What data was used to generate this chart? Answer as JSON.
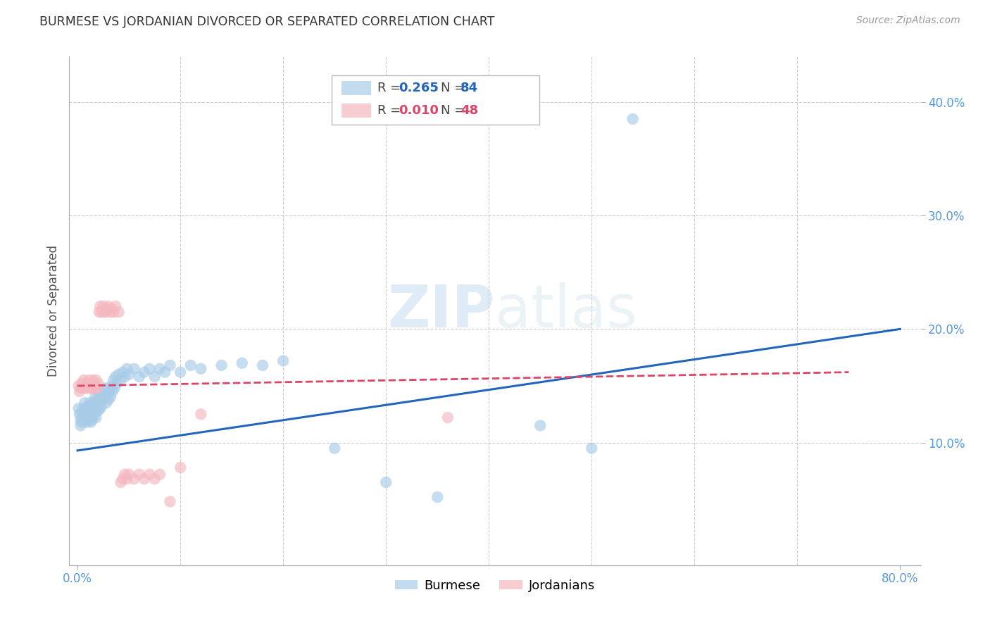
{
  "title": "BURMESE VS JORDANIAN DIVORCED OR SEPARATED CORRELATION CHART",
  "source": "Source: ZipAtlas.com",
  "tick_color": "#5599dd",
  "ylabel": "Divorced or Separated",
  "watermark": "ZIPatlas",
  "legend_r1": "0.265",
  "legend_n1": "84",
  "legend_r2": "0.010",
  "legend_n2": "48",
  "burmese_color": "#a8cce8",
  "jordanian_color": "#f4b8c0",
  "line_blue": "#2266bb",
  "line_pink": "#dd4466",
  "xlim": [
    -0.008,
    0.82
  ],
  "ylim": [
    -0.008,
    0.44
  ],
  "xtick_positions": [
    0.0,
    0.8
  ],
  "xtick_labels": [
    "0.0%",
    "80.0%"
  ],
  "ytick_positions": [
    0.1,
    0.2,
    0.3,
    0.4
  ],
  "ytick_labels": [
    "10.0%",
    "20.0%",
    "30.0%",
    "40.0%"
  ],
  "grid_yticks": [
    0.1,
    0.2,
    0.3,
    0.4
  ],
  "grid_xticks": [
    0.1,
    0.2,
    0.3,
    0.4,
    0.5,
    0.6,
    0.7
  ],
  "burmese_x": [
    0.001,
    0.002,
    0.003,
    0.003,
    0.004,
    0.004,
    0.005,
    0.005,
    0.006,
    0.006,
    0.007,
    0.007,
    0.008,
    0.008,
    0.009,
    0.009,
    0.01,
    0.01,
    0.011,
    0.011,
    0.012,
    0.012,
    0.013,
    0.013,
    0.014,
    0.014,
    0.015,
    0.015,
    0.016,
    0.016,
    0.017,
    0.017,
    0.018,
    0.018,
    0.019,
    0.02,
    0.02,
    0.021,
    0.022,
    0.022,
    0.023,
    0.023,
    0.024,
    0.025,
    0.026,
    0.027,
    0.028,
    0.029,
    0.03,
    0.031,
    0.032,
    0.033,
    0.034,
    0.035,
    0.036,
    0.037,
    0.038,
    0.04,
    0.042,
    0.044,
    0.046,
    0.048,
    0.05,
    0.055,
    0.06,
    0.065,
    0.07,
    0.075,
    0.08,
    0.085,
    0.09,
    0.1,
    0.11,
    0.12,
    0.14,
    0.16,
    0.18,
    0.2,
    0.25,
    0.3,
    0.35,
    0.45,
    0.5,
    0.54
  ],
  "burmese_y": [
    0.13,
    0.125,
    0.12,
    0.115,
    0.125,
    0.118,
    0.13,
    0.122,
    0.128,
    0.12,
    0.135,
    0.125,
    0.13,
    0.122,
    0.128,
    0.118,
    0.132,
    0.124,
    0.13,
    0.12,
    0.135,
    0.125,
    0.13,
    0.118,
    0.128,
    0.12,
    0.132,
    0.122,
    0.135,
    0.125,
    0.14,
    0.128,
    0.135,
    0.122,
    0.13,
    0.14,
    0.128,
    0.145,
    0.138,
    0.13,
    0.142,
    0.132,
    0.138,
    0.145,
    0.14,
    0.148,
    0.135,
    0.142,
    0.138,
    0.145,
    0.14,
    0.15,
    0.145,
    0.155,
    0.148,
    0.158,
    0.152,
    0.16,
    0.155,
    0.162,
    0.158,
    0.165,
    0.16,
    0.165,
    0.158,
    0.162,
    0.165,
    0.158,
    0.165,
    0.162,
    0.168,
    0.162,
    0.168,
    0.165,
    0.168,
    0.17,
    0.168,
    0.172,
    0.095,
    0.065,
    0.052,
    0.115,
    0.095,
    0.385
  ],
  "jordanian_x": [
    0.001,
    0.002,
    0.003,
    0.004,
    0.005,
    0.006,
    0.007,
    0.008,
    0.009,
    0.01,
    0.011,
    0.012,
    0.013,
    0.014,
    0.015,
    0.016,
    0.017,
    0.018,
    0.019,
    0.02,
    0.021,
    0.022,
    0.023,
    0.025,
    0.026,
    0.027,
    0.028,
    0.03,
    0.032,
    0.033,
    0.035,
    0.037,
    0.04,
    0.042,
    0.044,
    0.046,
    0.048,
    0.05,
    0.055,
    0.06,
    0.065,
    0.07,
    0.075,
    0.08,
    0.09,
    0.1,
    0.12,
    0.36
  ],
  "jordanian_y": [
    0.15,
    0.145,
    0.148,
    0.152,
    0.148,
    0.155,
    0.15,
    0.148,
    0.152,
    0.148,
    0.155,
    0.148,
    0.152,
    0.148,
    0.155,
    0.148,
    0.152,
    0.155,
    0.148,
    0.152,
    0.215,
    0.22,
    0.215,
    0.22,
    0.215,
    0.218,
    0.215,
    0.22,
    0.215,
    0.218,
    0.215,
    0.22,
    0.215,
    0.065,
    0.068,
    0.072,
    0.068,
    0.072,
    0.068,
    0.072,
    0.068,
    0.072,
    0.068,
    0.072,
    0.048,
    0.078,
    0.125,
    0.122
  ],
  "blue_line_x": [
    0.0,
    0.8
  ],
  "blue_line_y": [
    0.093,
    0.2
  ],
  "pink_line_x": [
    0.0,
    0.75
  ],
  "pink_line_y": [
    0.15,
    0.162
  ]
}
